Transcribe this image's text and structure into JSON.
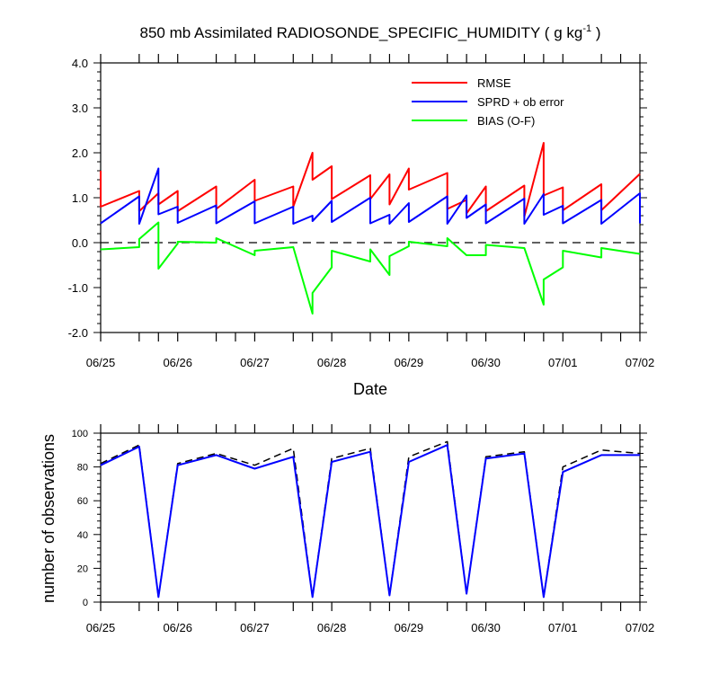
{
  "chart_data": [
    {
      "type": "line",
      "title": "850 mb Assimilated RADIOSONDE_SPECIFIC_HUMIDITY ( g kg",
      "title_units_exponent": "-1",
      "title_suffix": " )",
      "xlabel": "Date",
      "ylabel": "",
      "ylim": [
        -2.0,
        4.0
      ],
      "yticks": [
        "4.0",
        "3.0",
        "2.0",
        "1.0",
        "0.0",
        "-1.0",
        "-2.0"
      ],
      "yticks_values": [
        4.0,
        3.0,
        2.0,
        1.0,
        0.0,
        -1.0,
        -2.0
      ],
      "xlim": [
        0,
        7
      ],
      "xticks": [
        "06/25",
        "06/26",
        "06/27",
        "06/28",
        "06/29",
        "06/30",
        "07/01",
        "07/02"
      ],
      "zero_line": "dashed",
      "grid": false,
      "legend_position": "top-right",
      "series": [
        {
          "name": "RMSE",
          "color": "#ff0000",
          "points": [
            [
              0.0,
              1.6
            ],
            [
              0.0,
              0.8
            ],
            [
              0.5,
              1.15
            ],
            [
              0.5,
              0.7
            ],
            [
              0.75,
              1.1
            ],
            [
              0.75,
              0.85
            ],
            [
              1.0,
              1.15
            ],
            [
              1.0,
              0.7
            ],
            [
              1.5,
              1.25
            ],
            [
              1.5,
              0.75
            ],
            [
              2.0,
              1.4
            ],
            [
              2.0,
              0.93
            ],
            [
              2.5,
              1.25
            ],
            [
              2.5,
              0.8
            ],
            [
              2.75,
              2.0
            ],
            [
              2.75,
              1.4
            ],
            [
              3.0,
              1.7
            ],
            [
              3.0,
              0.97
            ],
            [
              3.5,
              1.5
            ],
            [
              3.5,
              0.97
            ],
            [
              3.75,
              1.52
            ],
            [
              3.75,
              0.85
            ],
            [
              4.0,
              1.65
            ],
            [
              4.0,
              1.18
            ],
            [
              4.5,
              1.55
            ],
            [
              4.5,
              0.75
            ],
            [
              4.75,
              0.95
            ],
            [
              4.75,
              0.65
            ],
            [
              5.0,
              1.25
            ],
            [
              5.0,
              0.7
            ],
            [
              5.5,
              1.27
            ],
            [
              5.5,
              0.58
            ],
            [
              5.75,
              2.22
            ],
            [
              5.75,
              1.05
            ],
            [
              6.0,
              1.23
            ],
            [
              6.0,
              0.72
            ],
            [
              6.5,
              1.3
            ],
            [
              6.5,
              0.72
            ],
            [
              7.0,
              1.53
            ]
          ]
        },
        {
          "name": "SPRD + ob error",
          "color": "#0000ff",
          "points": [
            [
              0.0,
              0.43
            ],
            [
              0.5,
              1.03
            ],
            [
              0.5,
              0.42
            ],
            [
              0.75,
              1.65
            ],
            [
              0.75,
              0.63
            ],
            [
              1.0,
              0.8
            ],
            [
              1.0,
              0.44
            ],
            [
              1.5,
              0.83
            ],
            [
              1.5,
              0.43
            ],
            [
              2.0,
              0.92
            ],
            [
              2.0,
              0.43
            ],
            [
              2.5,
              0.8
            ],
            [
              2.5,
              0.42
            ],
            [
              2.75,
              0.6
            ],
            [
              2.75,
              0.48
            ],
            [
              3.0,
              0.93
            ],
            [
              3.0,
              0.46
            ],
            [
              3.5,
              1.0
            ],
            [
              3.5,
              0.43
            ],
            [
              3.75,
              0.62
            ],
            [
              3.75,
              0.42
            ],
            [
              4.0,
              0.88
            ],
            [
              4.0,
              0.46
            ],
            [
              4.5,
              1.03
            ],
            [
              4.5,
              0.42
            ],
            [
              4.75,
              1.05
            ],
            [
              4.75,
              0.55
            ],
            [
              5.0,
              0.85
            ],
            [
              5.0,
              0.43
            ],
            [
              5.5,
              0.98
            ],
            [
              5.5,
              0.42
            ],
            [
              5.75,
              1.08
            ],
            [
              5.75,
              0.62
            ],
            [
              6.0,
              0.82
            ],
            [
              6.0,
              0.43
            ],
            [
              6.5,
              0.95
            ],
            [
              6.5,
              0.42
            ],
            [
              7.0,
              1.1
            ],
            [
              7.0,
              0.43
            ]
          ]
        },
        {
          "name": "BIAS (O-F)",
          "color": "#00ff00",
          "points": [
            [
              0.0,
              -0.15
            ],
            [
              0.5,
              -0.1
            ],
            [
              0.5,
              0.08
            ],
            [
              0.75,
              0.45
            ],
            [
              0.75,
              -0.58
            ],
            [
              1.0,
              -0.02
            ],
            [
              1.0,
              0.02
            ],
            [
              1.5,
              0.0
            ],
            [
              1.5,
              0.1
            ],
            [
              2.0,
              -0.28
            ],
            [
              2.0,
              -0.18
            ],
            [
              2.5,
              -0.1
            ],
            [
              2.75,
              -1.58
            ],
            [
              2.75,
              -1.12
            ],
            [
              3.0,
              -0.55
            ],
            [
              3.0,
              -0.18
            ],
            [
              3.5,
              -0.42
            ],
            [
              3.5,
              -0.15
            ],
            [
              3.75,
              -0.72
            ],
            [
              3.75,
              -0.3
            ],
            [
              4.0,
              -0.08
            ],
            [
              4.0,
              0.02
            ],
            [
              4.5,
              -0.08
            ],
            [
              4.5,
              0.1
            ],
            [
              4.75,
              -0.28
            ],
            [
              5.0,
              -0.28
            ],
            [
              5.0,
              -0.05
            ],
            [
              5.5,
              -0.12
            ],
            [
              5.75,
              -1.38
            ],
            [
              5.75,
              -0.82
            ],
            [
              6.0,
              -0.55
            ],
            [
              6.0,
              -0.18
            ],
            [
              6.5,
              -0.33
            ],
            [
              6.5,
              -0.12
            ],
            [
              7.0,
              -0.25
            ]
          ]
        }
      ]
    },
    {
      "type": "line",
      "ylabel": "number of observations",
      "ylim": [
        0,
        100
      ],
      "yticks": [
        "100",
        "80",
        "60",
        "40",
        "20",
        "0"
      ],
      "yticks_values": [
        100,
        80,
        60,
        40,
        20,
        0
      ],
      "xlim": [
        0,
        7
      ],
      "xticks": [
        "06/25",
        "06/26",
        "06/27",
        "06/28",
        "06/29",
        "06/30",
        "07/01",
        "07/02"
      ],
      "grid": false,
      "series": [
        {
          "name": "",
          "style": "dashed",
          "color": "#000000",
          "points": [
            [
              0.0,
              82
            ],
            [
              0.5,
              93
            ],
            [
              0.75,
              3
            ],
            [
              1.0,
              82
            ],
            [
              1.5,
              88
            ],
            [
              2.0,
              81
            ],
            [
              2.5,
              91
            ],
            [
              2.75,
              3
            ],
            [
              3.0,
              85
            ],
            [
              3.5,
              91
            ],
            [
              3.75,
              4
            ],
            [
              4.0,
              86
            ],
            [
              4.5,
              95
            ],
            [
              4.75,
              5
            ],
            [
              5.0,
              86
            ],
            [
              5.5,
              89
            ],
            [
              5.75,
              3
            ],
            [
              6.0,
              80
            ],
            [
              6.5,
              90
            ],
            [
              7.0,
              88
            ]
          ]
        },
        {
          "name": "",
          "style": "solid",
          "color": "#0000ff",
          "points": [
            [
              0.0,
              81
            ],
            [
              0.5,
              92
            ],
            [
              0.75,
              3
            ],
            [
              1.0,
              81
            ],
            [
              1.5,
              87
            ],
            [
              2.0,
              79
            ],
            [
              2.5,
              86
            ],
            [
              2.75,
              3
            ],
            [
              3.0,
              83
            ],
            [
              3.5,
              89
            ],
            [
              3.75,
              4
            ],
            [
              4.0,
              83
            ],
            [
              4.5,
              93
            ],
            [
              4.75,
              5
            ],
            [
              5.0,
              85
            ],
            [
              5.5,
              88
            ],
            [
              5.75,
              3
            ],
            [
              6.0,
              77
            ],
            [
              6.5,
              87
            ],
            [
              7.0,
              87
            ]
          ]
        }
      ]
    }
  ]
}
